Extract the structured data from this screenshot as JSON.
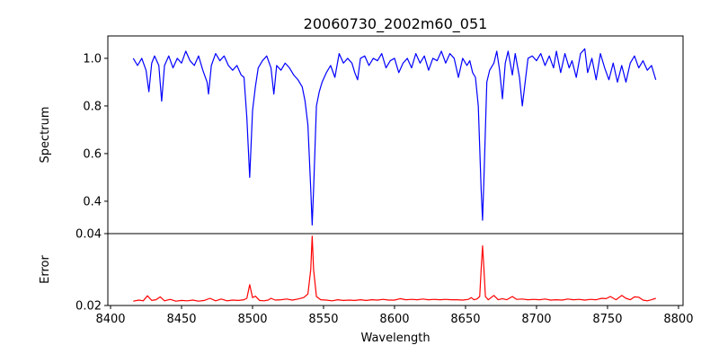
{
  "chart_data": [
    {
      "type": "line",
      "title": "20060730_2002m60_051",
      "xlabel": "",
      "ylabel": "Spectrum",
      "xlim": [
        8398.1,
        8803.2
      ],
      "ylim": [
        0.264,
        1.094
      ],
      "yticks": [
        0.4,
        0.6,
        0.8,
        1.0
      ],
      "ytick_labels": [
        "0.4",
        "0.6",
        "0.8",
        "1.0"
      ],
      "grid": false,
      "color": "#0000ff",
      "points": [
        [
          8416,
          1.0
        ],
        [
          8419,
          0.97
        ],
        [
          8422,
          1.0
        ],
        [
          8425,
          0.95
        ],
        [
          8427,
          0.86
        ],
        [
          8429,
          0.98
        ],
        [
          8431,
          1.01
        ],
        [
          8434,
          0.97
        ],
        [
          8436,
          0.82
        ],
        [
          8438,
          0.97
        ],
        [
          8441,
          1.01
        ],
        [
          8444,
          0.96
        ],
        [
          8447,
          1.0
        ],
        [
          8450,
          0.98
        ],
        [
          8453,
          1.03
        ],
        [
          8456,
          0.99
        ],
        [
          8459,
          0.97
        ],
        [
          8462,
          1.01
        ],
        [
          8465,
          0.95
        ],
        [
          8468,
          0.9
        ],
        [
          8469,
          0.85
        ],
        [
          8471,
          0.97
        ],
        [
          8474,
          1.02
        ],
        [
          8477,
          0.99
        ],
        [
          8480,
          1.01
        ],
        [
          8483,
          0.97
        ],
        [
          8486,
          0.95
        ],
        [
          8489,
          0.97
        ],
        [
          8492,
          0.93
        ],
        [
          8494,
          0.92
        ],
        [
          8496,
          0.75
        ],
        [
          8498,
          0.5
        ],
        [
          8500,
          0.78
        ],
        [
          8502,
          0.88
        ],
        [
          8504,
          0.96
        ],
        [
          8507,
          0.99
        ],
        [
          8510,
          1.01
        ],
        [
          8513,
          0.96
        ],
        [
          8515,
          0.85
        ],
        [
          8517,
          0.97
        ],
        [
          8520,
          0.95
        ],
        [
          8523,
          0.98
        ],
        [
          8526,
          0.96
        ],
        [
          8529,
          0.93
        ],
        [
          8532,
          0.91
        ],
        [
          8535,
          0.88
        ],
        [
          8537,
          0.82
        ],
        [
          8539,
          0.72
        ],
        [
          8541,
          0.45
        ],
        [
          8542,
          0.3
        ],
        [
          8543,
          0.45
        ],
        [
          8545,
          0.8
        ],
        [
          8547,
          0.86
        ],
        [
          8549,
          0.9
        ],
        [
          8552,
          0.94
        ],
        [
          8555,
          0.97
        ],
        [
          8558,
          0.92
        ],
        [
          8561,
          1.02
        ],
        [
          8564,
          0.98
        ],
        [
          8567,
          1.0
        ],
        [
          8570,
          0.98
        ],
        [
          8572,
          0.94
        ],
        [
          8574,
          0.91
        ],
        [
          8576,
          1.0
        ],
        [
          8579,
          1.01
        ],
        [
          8582,
          0.97
        ],
        [
          8585,
          1.0
        ],
        [
          8588,
          0.99
        ],
        [
          8591,
          1.02
        ],
        [
          8594,
          0.96
        ],
        [
          8597,
          0.99
        ],
        [
          8600,
          1.0
        ],
        [
          8603,
          0.94
        ],
        [
          8606,
          0.98
        ],
        [
          8609,
          1.0
        ],
        [
          8612,
          0.96
        ],
        [
          8615,
          1.02
        ],
        [
          8618,
          0.98
        ],
        [
          8621,
          1.01
        ],
        [
          8624,
          0.95
        ],
        [
          8627,
          1.0
        ],
        [
          8630,
          0.99
        ],
        [
          8633,
          1.03
        ],
        [
          8636,
          0.98
        ],
        [
          8639,
          1.02
        ],
        [
          8642,
          1.0
        ],
        [
          8645,
          0.92
        ],
        [
          8648,
          1.0
        ],
        [
          8651,
          0.97
        ],
        [
          8653,
          0.99
        ],
        [
          8655,
          0.94
        ],
        [
          8657,
          0.92
        ],
        [
          8659,
          0.8
        ],
        [
          8661,
          0.45
        ],
        [
          8662,
          0.32
        ],
        [
          8663,
          0.5
        ],
        [
          8665,
          0.9
        ],
        [
          8667,
          0.95
        ],
        [
          8670,
          0.98
        ],
        [
          8672,
          1.03
        ],
        [
          8674,
          0.95
        ],
        [
          8676,
          0.83
        ],
        [
          8678,
          0.98
        ],
        [
          8680,
          1.03
        ],
        [
          8683,
          0.93
        ],
        [
          8685,
          1.02
        ],
        [
          8688,
          0.92
        ],
        [
          8690,
          0.8
        ],
        [
          8692,
          0.9
        ],
        [
          8694,
          1.0
        ],
        [
          8697,
          1.01
        ],
        [
          8700,
          0.99
        ],
        [
          8703,
          1.02
        ],
        [
          8706,
          0.97
        ],
        [
          8709,
          1.01
        ],
        [
          8712,
          0.96
        ],
        [
          8714,
          1.03
        ],
        [
          8717,
          0.94
        ],
        [
          8720,
          1.02
        ],
        [
          8723,
          0.96
        ],
        [
          8725,
          0.99
        ],
        [
          8728,
          0.92
        ],
        [
          8731,
          1.02
        ],
        [
          8734,
          1.04
        ],
        [
          8736,
          0.94
        ],
        [
          8739,
          1.0
        ],
        [
          8742,
          0.91
        ],
        [
          8745,
          1.02
        ],
        [
          8748,
          0.96
        ],
        [
          8751,
          0.91
        ],
        [
          8754,
          0.98
        ],
        [
          8757,
          0.9
        ],
        [
          8760,
          0.97
        ],
        [
          8763,
          0.9
        ],
        [
          8766,
          0.98
        ],
        [
          8769,
          1.01
        ],
        [
          8772,
          0.96
        ],
        [
          8775,
          0.99
        ],
        [
          8778,
          0.95
        ],
        [
          8781,
          0.97
        ],
        [
          8784,
          0.91
        ]
      ]
    },
    {
      "type": "line",
      "xlabel": "Wavelength",
      "ylabel": "Error",
      "xlim": [
        8398.1,
        8803.2
      ],
      "ylim": [
        0.02,
        0.04
      ],
      "yticks": [
        0.02,
        0.04
      ],
      "ytick_labels": [
        "0.02",
        "0.04"
      ],
      "xticks": [
        8400,
        8450,
        8500,
        8550,
        8600,
        8650,
        8700,
        8750,
        8800
      ],
      "xtick_labels": [
        "8400",
        "8450",
        "8500",
        "8550",
        "8600",
        "8650",
        "8700",
        "8750",
        "8800"
      ],
      "grid": false,
      "color": "#ff0000",
      "points": [
        [
          8416,
          0.0212
        ],
        [
          8420,
          0.0215
        ],
        [
          8423,
          0.0213
        ],
        [
          8426,
          0.0227
        ],
        [
          8429,
          0.0214
        ],
        [
          8432,
          0.0216
        ],
        [
          8435,
          0.0224
        ],
        [
          8438,
          0.0213
        ],
        [
          8442,
          0.0217
        ],
        [
          8446,
          0.0212
        ],
        [
          8450,
          0.0214
        ],
        [
          8454,
          0.0213
        ],
        [
          8458,
          0.0215
        ],
        [
          8462,
          0.0212
        ],
        [
          8466,
          0.0214
        ],
        [
          8470,
          0.022
        ],
        [
          8474,
          0.0213
        ],
        [
          8478,
          0.0218
        ],
        [
          8482,
          0.0213
        ],
        [
          8486,
          0.0215
        ],
        [
          8490,
          0.0214
        ],
        [
          8494,
          0.0216
        ],
        [
          8496,
          0.022
        ],
        [
          8498,
          0.0258
        ],
        [
          8500,
          0.0222
        ],
        [
          8502,
          0.0226
        ],
        [
          8505,
          0.0214
        ],
        [
          8508,
          0.0213
        ],
        [
          8511,
          0.0215
        ],
        [
          8513,
          0.022
        ],
        [
          8516,
          0.0215
        ],
        [
          8520,
          0.0216
        ],
        [
          8524,
          0.0218
        ],
        [
          8528,
          0.0215
        ],
        [
          8532,
          0.0218
        ],
        [
          8536,
          0.0222
        ],
        [
          8539,
          0.0232
        ],
        [
          8541,
          0.03
        ],
        [
          8542,
          0.0393
        ],
        [
          8543,
          0.03
        ],
        [
          8545,
          0.0225
        ],
        [
          8548,
          0.0216
        ],
        [
          8552,
          0.0215
        ],
        [
          8556,
          0.0213
        ],
        [
          8560,
          0.0216
        ],
        [
          8564,
          0.0214
        ],
        [
          8568,
          0.0215
        ],
        [
          8572,
          0.0214
        ],
        [
          8576,
          0.0216
        ],
        [
          8580,
          0.0214
        ],
        [
          8584,
          0.0216
        ],
        [
          8588,
          0.0215
        ],
        [
          8592,
          0.0217
        ],
        [
          8596,
          0.0215
        ],
        [
          8600,
          0.0215
        ],
        [
          8604,
          0.0219
        ],
        [
          8608,
          0.0216
        ],
        [
          8612,
          0.0217
        ],
        [
          8616,
          0.0216
        ],
        [
          8620,
          0.0218
        ],
        [
          8624,
          0.0216
        ],
        [
          8628,
          0.0217
        ],
        [
          8632,
          0.0216
        ],
        [
          8636,
          0.0217
        ],
        [
          8640,
          0.0216
        ],
        [
          8644,
          0.0216
        ],
        [
          8648,
          0.0215
        ],
        [
          8652,
          0.0217
        ],
        [
          8654,
          0.0222
        ],
        [
          8656,
          0.0216
        ],
        [
          8658,
          0.0218
        ],
        [
          8660,
          0.0225
        ],
        [
          8661,
          0.03
        ],
        [
          8662,
          0.0366
        ],
        [
          8663,
          0.03
        ],
        [
          8664,
          0.0225
        ],
        [
          8666,
          0.0216
        ],
        [
          8670,
          0.0228
        ],
        [
          8673,
          0.0216
        ],
        [
          8676,
          0.0219
        ],
        [
          8679,
          0.0216
        ],
        [
          8683,
          0.0225
        ],
        [
          8686,
          0.0217
        ],
        [
          8690,
          0.0218
        ],
        [
          8694,
          0.0216
        ],
        [
          8698,
          0.0217
        ],
        [
          8702,
          0.0216
        ],
        [
          8706,
          0.0218
        ],
        [
          8710,
          0.0215
        ],
        [
          8714,
          0.0216
        ],
        [
          8718,
          0.0215
        ],
        [
          8722,
          0.0218
        ],
        [
          8726,
          0.0216
        ],
        [
          8730,
          0.0217
        ],
        [
          8734,
          0.0215
        ],
        [
          8738,
          0.0217
        ],
        [
          8742,
          0.0216
        ],
        [
          8746,
          0.022
        ],
        [
          8749,
          0.0219
        ],
        [
          8752,
          0.0225
        ],
        [
          8756,
          0.0216
        ],
        [
          8760,
          0.0228
        ],
        [
          8763,
          0.022
        ],
        [
          8766,
          0.0216
        ],
        [
          8769,
          0.0224
        ],
        [
          8772,
          0.0223
        ],
        [
          8775,
          0.0215
        ],
        [
          8778,
          0.0213
        ],
        [
          8781,
          0.0216
        ],
        [
          8784,
          0.022
        ]
      ]
    }
  ]
}
